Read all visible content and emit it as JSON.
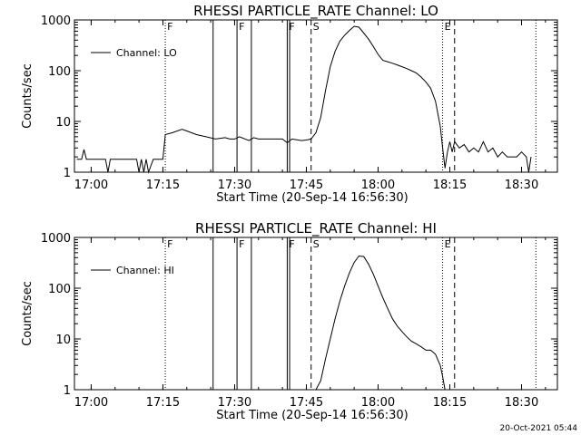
{
  "chart_data": [
    {
      "type": "line",
      "title": "RHESSI PARTICLE_RATE Channel: LO",
      "xlabel": "Start Time (20-Sep-14 16:56:30)",
      "ylabel": "Counts/sec",
      "y_scale": "log",
      "ylim": [
        1,
        1000
      ],
      "xlim": [
        "16:56:30",
        "18:37:30"
      ],
      "x_ticks": [
        "17:00",
        "17:15",
        "17:30",
        "17:45",
        "18:00",
        "18:15",
        "18:30"
      ],
      "y_ticks": [
        "1",
        "10",
        "100",
        "1000"
      ],
      "grid": false,
      "legend": {
        "placement": "top-left",
        "entries": [
          "Channel: LO"
        ]
      },
      "time_markers": [
        {
          "time": "17:15:30",
          "label": "F",
          "style": "dotted"
        },
        {
          "time": "17:25:30",
          "label": "",
          "style": "solid"
        },
        {
          "time": "17:30:30",
          "label": "F",
          "style": "solid"
        },
        {
          "time": "17:33:30",
          "label": "",
          "style": "solid"
        },
        {
          "time": "17:41:00",
          "label": "F",
          "style": "solid"
        },
        {
          "time": "17:41:30",
          "label": "",
          "style": "solid"
        },
        {
          "time": "17:46:00",
          "label": "S",
          "style": "dashed"
        },
        {
          "time": "18:13:30",
          "label": "E",
          "style": "dotted"
        },
        {
          "time": "18:16:00",
          "label": "",
          "style": "dashed"
        },
        {
          "time": "18:33:00",
          "label": "",
          "style": "dotted"
        }
      ],
      "series": [
        {
          "name": "Channel: LO",
          "x": [
            "16:57:00",
            "16:58:00",
            "16:58:30",
            "16:59:00",
            "17:00:00",
            "17:01:00",
            "17:03:00",
            "17:03:30",
            "17:04:00",
            "17:06:00",
            "17:08:00",
            "17:09:30",
            "17:10:00",
            "17:10:30",
            "17:11:00",
            "17:11:30",
            "17:12:00",
            "17:13:00",
            "17:14:00",
            "17:15:00",
            "17:15:30",
            "17:17:00",
            "17:19:00",
            "17:20:00",
            "17:22:00",
            "17:24:00",
            "17:26:00",
            "17:28:00",
            "17:29:00",
            "17:30:00",
            "17:31:00",
            "17:33:00",
            "17:34:00",
            "17:35:00",
            "17:36:00",
            "17:38:00",
            "17:40:00",
            "17:41:00",
            "17:42:00",
            "17:44:00",
            "17:45:00",
            "17:46:00",
            "17:47:00",
            "17:48:00",
            "17:49:00",
            "17:50:00",
            "17:51:00",
            "17:52:00",
            "17:53:00",
            "17:54:00",
            "17:55:00",
            "17:56:00",
            "17:57:00",
            "17:58:00",
            "17:59:00",
            "18:00:00",
            "18:01:00",
            "18:02:00",
            "18:03:00",
            "18:04:00",
            "18:05:00",
            "18:06:00",
            "18:07:00",
            "18:08:00",
            "18:09:00",
            "18:10:00",
            "18:11:00",
            "18:12:00",
            "18:13:00",
            "18:13:30",
            "18:14:00",
            "18:14:30",
            "18:15:00",
            "18:15:30",
            "18:16:00",
            "18:17:00",
            "18:18:00",
            "18:19:00",
            "18:20:00",
            "18:21:00",
            "18:22:00",
            "18:23:00",
            "18:24:00",
            "18:25:00",
            "18:26:00",
            "18:27:00",
            "18:28:00",
            "18:29:00",
            "18:30:00",
            "18:31:00",
            "18:31:30",
            "18:32:00"
          ],
          "y": [
            1.8,
            1.8,
            2.8,
            1.8,
            1.8,
            1.8,
            1.8,
            1,
            1.8,
            1.8,
            1.8,
            1.8,
            1,
            1.8,
            1,
            1.8,
            1,
            1.8,
            1.8,
            1.8,
            5.5,
            6,
            7,
            6.5,
            5.5,
            5,
            4.5,
            4.8,
            4.5,
            4.5,
            5,
            4.2,
            4.8,
            4.5,
            4.5,
            4.5,
            4.5,
            3.8,
            4.5,
            4.2,
            4.3,
            4.5,
            6,
            12,
            40,
            120,
            240,
            380,
            500,
            620,
            750,
            720,
            550,
            420,
            300,
            210,
            160,
            150,
            140,
            130,
            120,
            110,
            100,
            90,
            75,
            60,
            45,
            25,
            8,
            3,
            1.2,
            2.5,
            4,
            2.5,
            4,
            3,
            3.5,
            2.5,
            3,
            2.5,
            4,
            2.5,
            3,
            2,
            2.5,
            2,
            2,
            2,
            2.5,
            2,
            1,
            2
          ]
        }
      ]
    },
    {
      "type": "line",
      "title": "RHESSI PARTICLE_RATE Channel: HI",
      "xlabel": "Start Time (20-Sep-14 16:56:30)",
      "ylabel": "Counts/sec",
      "y_scale": "log",
      "ylim": [
        1,
        1000
      ],
      "xlim": [
        "16:56:30",
        "18:37:30"
      ],
      "x_ticks": [
        "17:00",
        "17:15",
        "17:30",
        "17:45",
        "18:00",
        "18:15",
        "18:30"
      ],
      "y_ticks": [
        "1",
        "10",
        "100",
        "1000"
      ],
      "grid": false,
      "legend": {
        "placement": "top-left",
        "entries": [
          "Channel: HI"
        ]
      },
      "time_markers": [
        {
          "time": "17:15:30",
          "label": "F",
          "style": "dotted"
        },
        {
          "time": "17:25:30",
          "label": "",
          "style": "solid"
        },
        {
          "time": "17:30:30",
          "label": "F",
          "style": "solid"
        },
        {
          "time": "17:33:30",
          "label": "",
          "style": "solid"
        },
        {
          "time": "17:41:00",
          "label": "F",
          "style": "solid"
        },
        {
          "time": "17:41:30",
          "label": "",
          "style": "solid"
        },
        {
          "time": "17:46:00",
          "label": "S",
          "style": "dashed"
        },
        {
          "time": "18:13:30",
          "label": "E",
          "style": "dotted"
        },
        {
          "time": "18:16:00",
          "label": "",
          "style": "dashed"
        },
        {
          "time": "18:33:00",
          "label": "",
          "style": "dotted"
        }
      ],
      "series": [
        {
          "name": "Channel: HI",
          "x": [
            "17:47:00",
            "17:48:00",
            "17:49:00",
            "17:50:00",
            "17:51:00",
            "17:52:00",
            "17:53:00",
            "17:54:00",
            "17:55:00",
            "17:56:00",
            "17:57:00",
            "17:58:00",
            "17:59:00",
            "18:00:00",
            "18:01:00",
            "18:02:00",
            "18:03:00",
            "18:04:00",
            "18:05:00",
            "18:06:00",
            "18:07:00",
            "18:08:00",
            "18:09:00",
            "18:10:00",
            "18:11:00",
            "18:12:00",
            "18:13:00",
            "18:13:30",
            "18:14:00"
          ],
          "y": [
            1,
            1.5,
            4,
            10,
            25,
            55,
            110,
            200,
            320,
            430,
            420,
            300,
            190,
            110,
            65,
            40,
            25,
            18,
            14,
            11,
            9,
            8,
            7,
            6,
            6,
            5,
            3,
            1.8,
            1
          ]
        }
      ]
    }
  ],
  "timestamp": "20-Oct-2021 05:44"
}
